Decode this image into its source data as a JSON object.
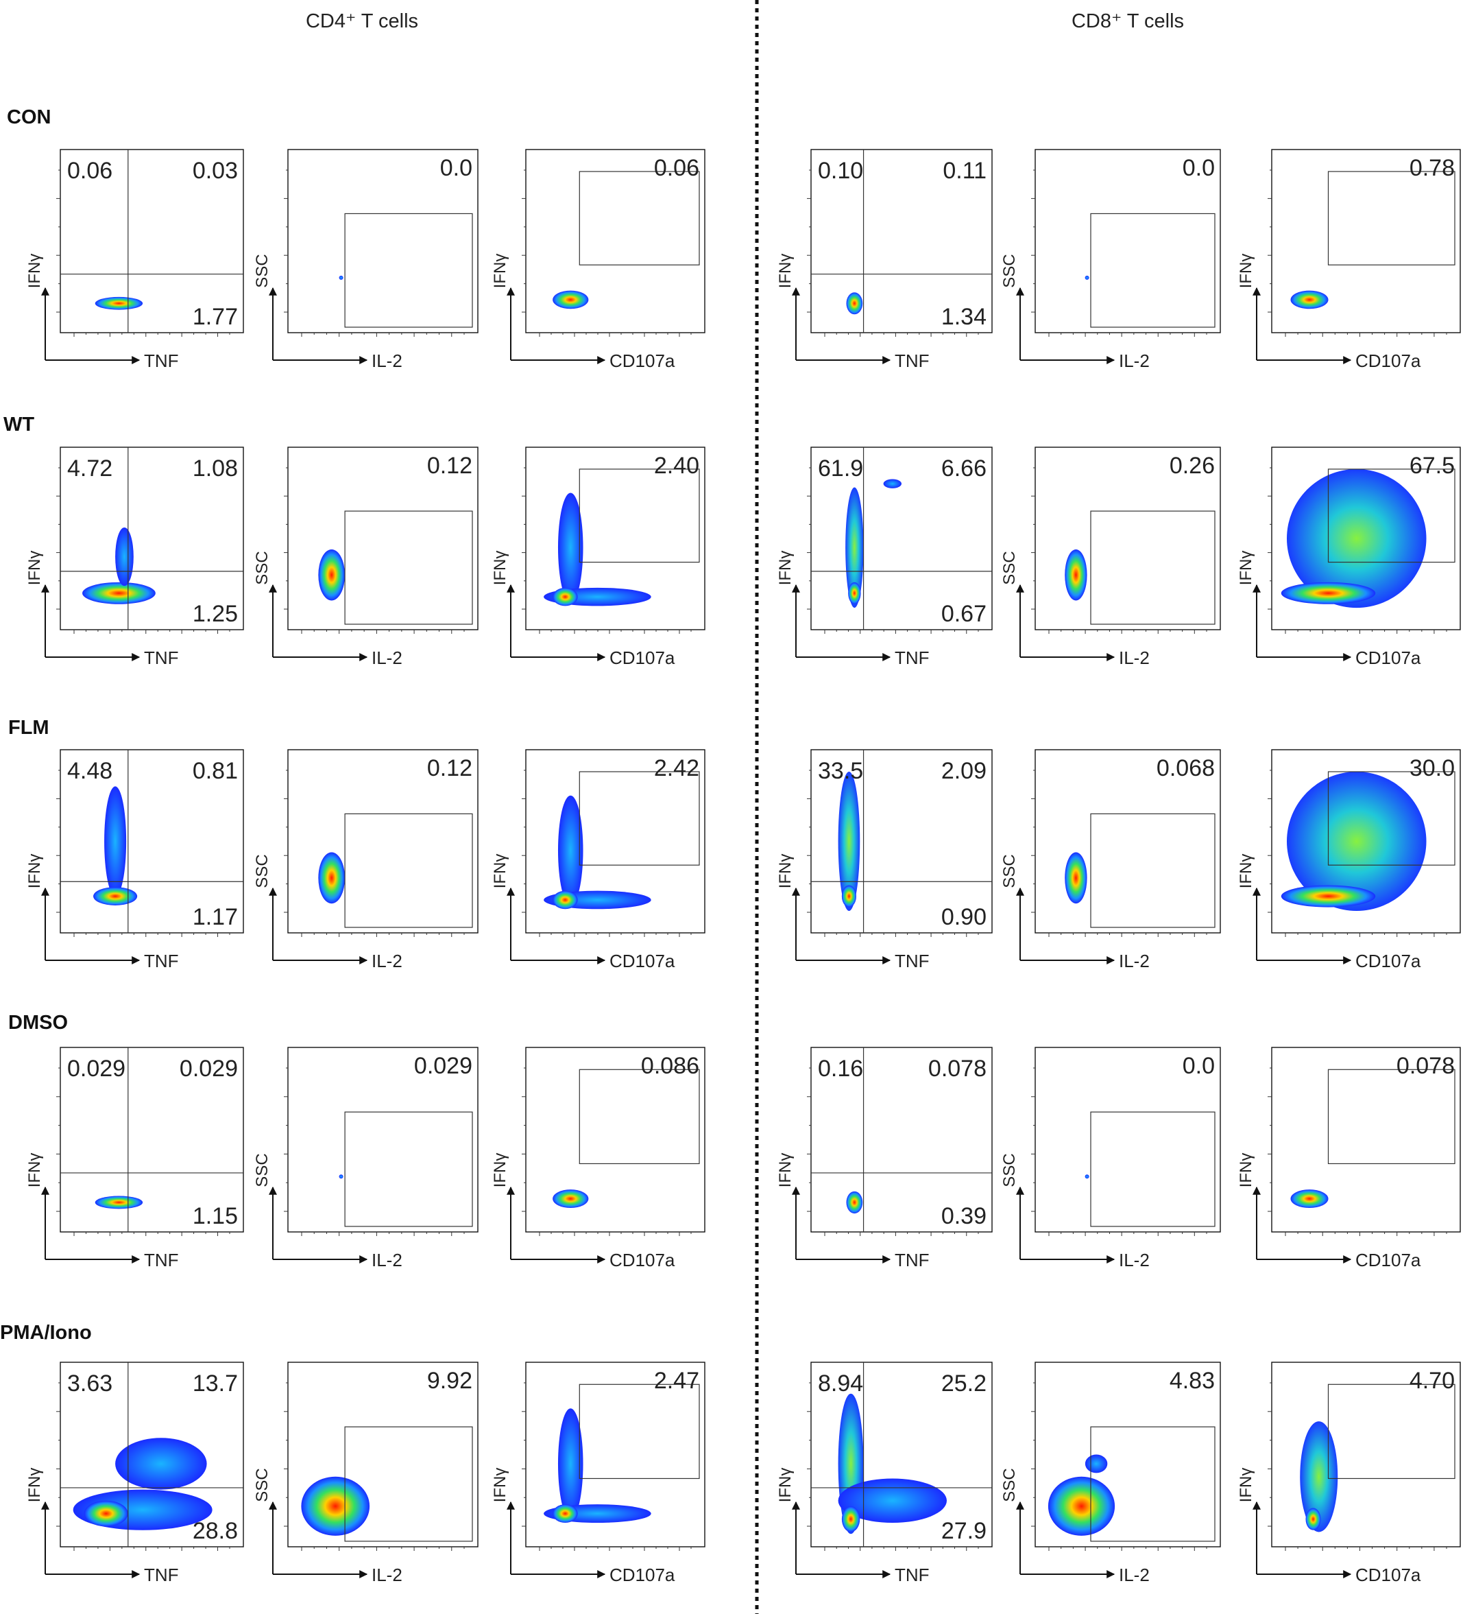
{
  "figure": {
    "headers": [
      "CD4⁺ T cells",
      "CD8⁺ T cells"
    ],
    "rows": [
      "CON",
      "WT",
      "FLM",
      "DMSO",
      "PMA/Iono"
    ]
  },
  "chart_data": {
    "type": "scatter",
    "subtype": "flow-cytometry-density-plot-grid",
    "panel_types": [
      {
        "kind": "quadrant",
        "xlabel": "TNF",
        "ylabel": "IFNγ",
        "gate": "quadrant",
        "labels": [
          "upper-left",
          "upper-right",
          "lower-right"
        ]
      },
      {
        "kind": "il2",
        "xlabel": "IL-2",
        "ylabel": "SSC",
        "gate": "rectangle",
        "labels": [
          "gate"
        ]
      },
      {
        "kind": "cd107",
        "xlabel": "CD107a",
        "ylabel": "IFNγ",
        "gate": "rectangle",
        "labels": [
          "gate"
        ]
      }
    ],
    "panels": [
      {
        "row": "CON",
        "cell": "CD4⁺ T cells",
        "TNF_IFNg": [
          "0.06",
          "0.03",
          "1.77"
        ],
        "IL2_SSC": "0.0",
        "CD107a_IFNg": "0.06"
      },
      {
        "row": "CON",
        "cell": "CD8⁺ T cells",
        "TNF_IFNg": [
          "0.10",
          "0.11",
          "1.34"
        ],
        "IL2_SSC": "0.0",
        "CD107a_IFNg": "0.78"
      },
      {
        "row": "WT",
        "cell": "CD4⁺ T cells",
        "TNF_IFNg": [
          "4.72",
          "1.08",
          "1.25"
        ],
        "IL2_SSC": "0.12",
        "CD107a_IFNg": "2.40"
      },
      {
        "row": "WT",
        "cell": "CD8⁺ T cells",
        "TNF_IFNg": [
          "61.9",
          "6.66",
          "0.67"
        ],
        "IL2_SSC": "0.26",
        "CD107a_IFNg": "67.5"
      },
      {
        "row": "FLM",
        "cell": "CD4⁺ T cells",
        "TNF_IFNg": [
          "4.48",
          "0.81",
          "1.17"
        ],
        "IL2_SSC": "0.12",
        "CD107a_IFNg": "2.42"
      },
      {
        "row": "FLM",
        "cell": "CD8⁺ T cells",
        "TNF_IFNg": [
          "33.5",
          "2.09",
          "0.90"
        ],
        "IL2_SSC": "0.068",
        "CD107a_IFNg": "30.0"
      },
      {
        "row": "DMSO",
        "cell": "CD4⁺ T cells",
        "TNF_IFNg": [
          "0.029",
          "0.029",
          "1.15"
        ],
        "IL2_SSC": "0.029",
        "CD107a_IFNg": "0.086"
      },
      {
        "row": "DMSO",
        "cell": "CD8⁺ T cells",
        "TNF_IFNg": [
          "0.16",
          "0.078",
          "0.39"
        ],
        "IL2_SSC": "0.0",
        "CD107a_IFNg": "0.078"
      },
      {
        "row": "PMA/Iono",
        "cell": "CD4⁺ T cells",
        "TNF_IFNg": [
          "3.63",
          "13.7",
          "28.8"
        ],
        "IL2_SSC": "9.92",
        "CD107a_IFNg": "2.47"
      },
      {
        "row": "PMA/Iono",
        "cell": "CD8⁺ T cells",
        "TNF_IFNg": [
          "8.94",
          "25.2",
          "27.9"
        ],
        "IL2_SSC": "4.83",
        "CD107a_IFNg": "4.70"
      }
    ]
  }
}
